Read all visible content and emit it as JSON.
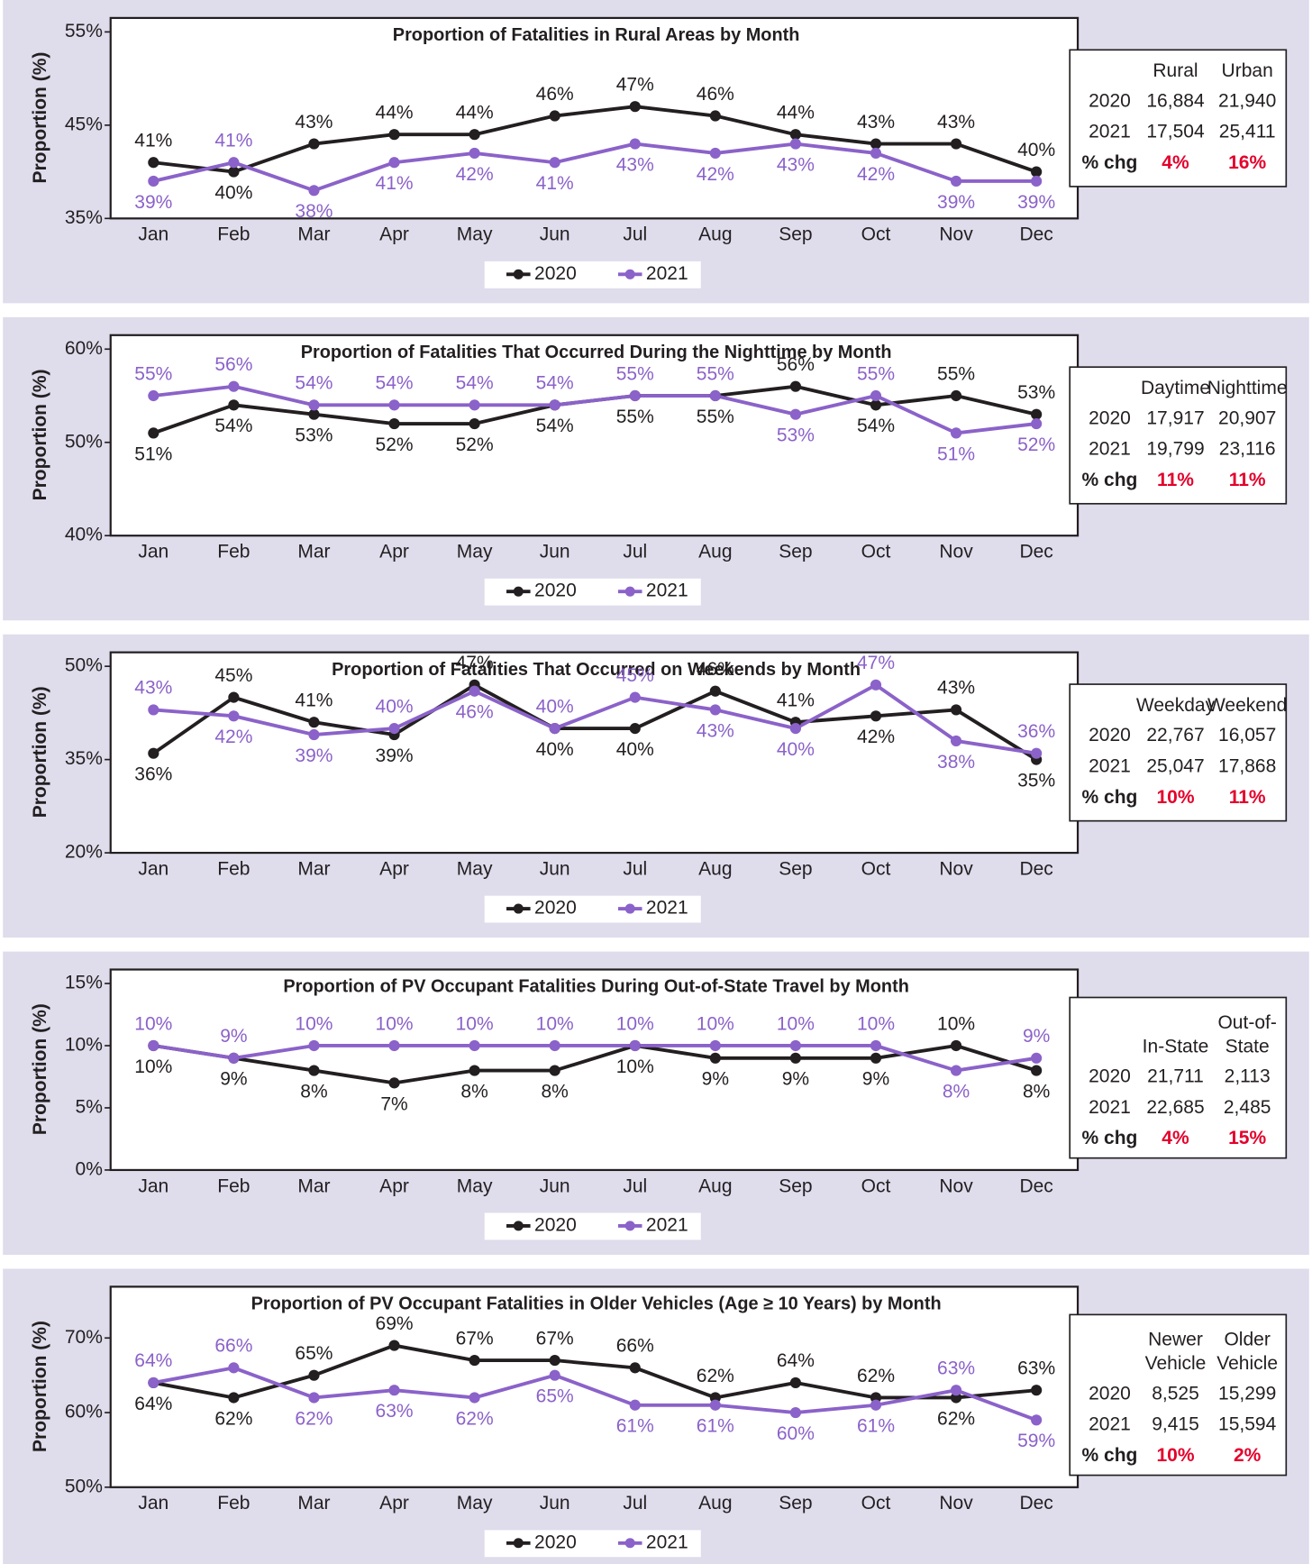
{
  "chart_data": [
    {
      "type": "line",
      "title": "Proportion of Fatalities in Rural Areas by Month",
      "ylabel": "Proportion (%)",
      "categories": [
        "Jan",
        "Feb",
        "Mar",
        "Apr",
        "May",
        "Jun",
        "Jul",
        "Aug",
        "Sep",
        "Oct",
        "Nov",
        "Dec"
      ],
      "series": [
        {
          "name": "2020",
          "color": "#231f20",
          "values": [
            41,
            40,
            43,
            44,
            44,
            46,
            47,
            46,
            44,
            43,
            43,
            40
          ],
          "value_labels": [
            "41%",
            "40%",
            "43%",
            "44%",
            "44%",
            "46%",
            "47%",
            "46%",
            "44%",
            "43%",
            "43%",
            "40%"
          ]
        },
        {
          "name": "2021",
          "color": "#8b62c9",
          "values": [
            39,
            41,
            38,
            41,
            42,
            41,
            43,
            42,
            43,
            42,
            39,
            39
          ],
          "value_labels": [
            "39%",
            "41%",
            "38%",
            "41%",
            "42%",
            "41%",
            "43%",
            "42%",
            "43%",
            "42%",
            "39%",
            "39%"
          ]
        }
      ],
      "ylim": [
        35,
        55
      ],
      "yticks": [
        {
          "value": 35,
          "label": "35%"
        },
        {
          "value": 45,
          "label": "45%"
        },
        {
          "value": 55,
          "label": "55%"
        }
      ],
      "grid": false,
      "legend": "bottom",
      "table": {
        "columns": [
          [
            "Rural"
          ],
          [
            "Urban"
          ]
        ],
        "rows": [
          {
            "label": "2020",
            "values": [
              "16,884",
              "21,940"
            ]
          },
          {
            "label": "2021",
            "values": [
              "17,504",
              "25,411"
            ]
          },
          {
            "label": "% chg",
            "values": [
              "4%",
              "16%"
            ]
          }
        ]
      }
    },
    {
      "type": "line",
      "title": "Proportion of Fatalities That Occurred During the Nighttime by Month",
      "ylabel": "Proportion (%)",
      "categories": [
        "Jan",
        "Feb",
        "Mar",
        "Apr",
        "May",
        "Jun",
        "Jul",
        "Aug",
        "Sep",
        "Oct",
        "Nov",
        "Dec"
      ],
      "series": [
        {
          "name": "2020",
          "color": "#231f20",
          "values": [
            51,
            54,
            53,
            52,
            52,
            54,
            55,
            55,
            56,
            54,
            55,
            53
          ],
          "value_labels": [
            "51%",
            "54%",
            "53%",
            "52%",
            "52%",
            "54%",
            "55%",
            "55%",
            "56%",
            "54%",
            "55%",
            "53%"
          ]
        },
        {
          "name": "2021",
          "color": "#8b62c9",
          "values": [
            55,
            56,
            54,
            54,
            54,
            54,
            55,
            55,
            53,
            55,
            51,
            52
          ],
          "value_labels": [
            "55%",
            "56%",
            "54%",
            "54%",
            "54%",
            "54%",
            "55%",
            "55%",
            "53%",
            "55%",
            "51%",
            "52%"
          ]
        }
      ],
      "ylim": [
        40,
        60
      ],
      "yticks": [
        {
          "value": 40,
          "label": "40%"
        },
        {
          "value": 50,
          "label": "50%"
        },
        {
          "value": 60,
          "label": "60%"
        }
      ],
      "grid": false,
      "legend": "bottom",
      "table": {
        "columns": [
          [
            "Daytime"
          ],
          [
            "Nighttime"
          ]
        ],
        "rows": [
          {
            "label": "2020",
            "values": [
              "17,917",
              "20,907"
            ]
          },
          {
            "label": "2021",
            "values": [
              "19,799",
              "23,116"
            ]
          },
          {
            "label": "% chg",
            "values": [
              "11%",
              "11%"
            ]
          }
        ]
      }
    },
    {
      "type": "line",
      "title": "Proportion of Fatalities That Occurred on Weekends by Month",
      "ylabel": "Proportion (%)",
      "categories": [
        "Jan",
        "Feb",
        "Mar",
        "Apr",
        "May",
        "Jun",
        "Jul",
        "Aug",
        "Sep",
        "Oct",
        "Nov",
        "Dec"
      ],
      "series": [
        {
          "name": "2020",
          "color": "#231f20",
          "values": [
            36,
            45,
            41,
            39,
            47,
            40,
            40,
            46,
            41,
            42,
            43,
            35
          ],
          "value_labels": [
            "36%",
            "45%",
            "41%",
            "39%",
            "47%",
            "40%",
            "40%",
            "46%",
            "41%",
            "42%",
            "43%",
            "35%"
          ]
        },
        {
          "name": "2021",
          "color": "#8b62c9",
          "values": [
            43,
            42,
            39,
            40,
            46,
            40,
            45,
            43,
            40,
            47,
            38,
            36
          ],
          "value_labels": [
            "43%",
            "42%",
            "39%",
            "40%",
            "46%",
            "40%",
            "45%",
            "43%",
            "40%",
            "47%",
            "38%",
            "36%"
          ]
        }
      ],
      "ylim": [
        20,
        50
      ],
      "yticks": [
        {
          "value": 20,
          "label": "20%"
        },
        {
          "value": 35,
          "label": "35%"
        },
        {
          "value": 50,
          "label": "50%"
        }
      ],
      "grid": false,
      "legend": "bottom",
      "table": {
        "columns": [
          [
            "Weekday"
          ],
          [
            "Weekend"
          ]
        ],
        "rows": [
          {
            "label": "2020",
            "values": [
              "22,767",
              "16,057"
            ]
          },
          {
            "label": "2021",
            "values": [
              "25,047",
              "17,868"
            ]
          },
          {
            "label": "% chg",
            "values": [
              "10%",
              "11%"
            ]
          }
        ]
      }
    },
    {
      "type": "line",
      "title": "Proportion of PV Occupant Fatalities During Out-of-State Travel by Month",
      "ylabel": "Proportion (%)",
      "categories": [
        "Jan",
        "Feb",
        "Mar",
        "Apr",
        "May",
        "Jun",
        "Jul",
        "Aug",
        "Sep",
        "Oct",
        "Nov",
        "Dec"
      ],
      "series": [
        {
          "name": "2020",
          "color": "#231f20",
          "values": [
            10,
            9,
            8,
            7,
            8,
            8,
            10,
            9,
            9,
            9,
            10,
            8
          ],
          "value_labels": [
            "10%",
            "9%",
            "8%",
            "7%",
            "8%",
            "8%",
            "10%",
            "9%",
            "9%",
            "9%",
            "10%",
            "8%"
          ]
        },
        {
          "name": "2021",
          "color": "#8b62c9",
          "values": [
            10,
            9,
            10,
            10,
            10,
            10,
            10,
            10,
            10,
            10,
            8,
            9
          ],
          "value_labels": [
            "10%",
            "9%",
            "10%",
            "10%",
            "10%",
            "10%",
            "10%",
            "10%",
            "10%",
            "10%",
            "8%",
            "9%"
          ]
        }
      ],
      "ylim": [
        0,
        15
      ],
      "yticks": [
        {
          "value": 0,
          "label": "0%"
        },
        {
          "value": 5,
          "label": "5%"
        },
        {
          "value": 10,
          "label": "10%"
        },
        {
          "value": 15,
          "label": "15%"
        }
      ],
      "grid": false,
      "legend": "bottom",
      "table": {
        "columns": [
          [
            "In-State"
          ],
          [
            "Out-of-",
            "State"
          ]
        ],
        "rows": [
          {
            "label": "2020",
            "values": [
              "21,711",
              "2,113"
            ]
          },
          {
            "label": "2021",
            "values": [
              "22,685",
              "2,485"
            ]
          },
          {
            "label": "% chg",
            "values": [
              "4%",
              "15%"
            ]
          }
        ]
      }
    },
    {
      "type": "line",
      "title": "Proportion of PV Occupant Fatalities in Older Vehicles (Age ≥ 10 Years) by Month",
      "ylabel": "Proportion (%)",
      "categories": [
        "Jan",
        "Feb",
        "Mar",
        "Apr",
        "May",
        "Jun",
        "Jul",
        "Aug",
        "Sep",
        "Oct",
        "Nov",
        "Dec"
      ],
      "series": [
        {
          "name": "2020",
          "color": "#231f20",
          "values": [
            64,
            62,
            65,
            69,
            67,
            67,
            66,
            62,
            64,
            62,
            62,
            63
          ],
          "value_labels": [
            "64%",
            "62%",
            "65%",
            "69%",
            "67%",
            "67%",
            "66%",
            "62%",
            "64%",
            "62%",
            "62%",
            "63%"
          ]
        },
        {
          "name": "2021",
          "color": "#8b62c9",
          "values": [
            64,
            66,
            62,
            63,
            62,
            65,
            61,
            61,
            60,
            61,
            63,
            59
          ],
          "value_labels": [
            "64%",
            "66%",
            "62%",
            "63%",
            "62%",
            "65%",
            "61%",
            "61%",
            "60%",
            "61%",
            "63%",
            "59%"
          ]
        }
      ],
      "ylim": [
        50,
        75
      ],
      "yticks": [
        {
          "value": 50,
          "label": "50%"
        },
        {
          "value": 60,
          "label": "60%"
        },
        {
          "value": 70,
          "label": "70%"
        }
      ],
      "grid": false,
      "legend": "bottom",
      "table": {
        "columns": [
          [
            "Newer",
            "Vehicle"
          ],
          [
            "Older",
            "Vehicle"
          ]
        ],
        "rows": [
          {
            "label": "2020",
            "values": [
              "8,525",
              "15,299"
            ]
          },
          {
            "label": "2021",
            "values": [
              "9,415",
              "15,594"
            ]
          },
          {
            "label": "% chg",
            "values": [
              "10%",
              "2%"
            ]
          }
        ]
      }
    }
  ]
}
